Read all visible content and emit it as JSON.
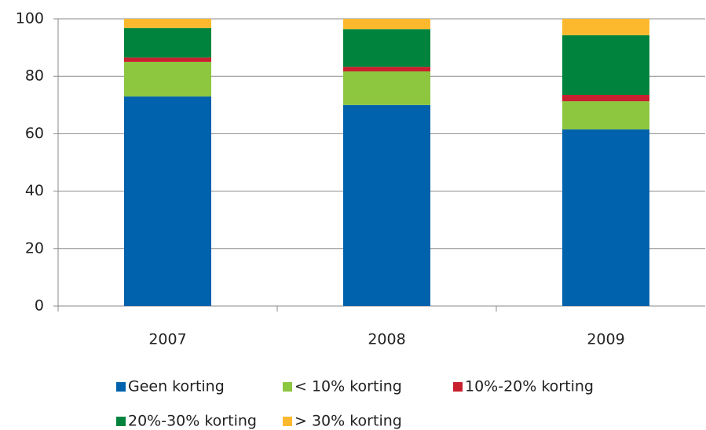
{
  "chart_data": {
    "type": "stacked-bar",
    "categories": [
      "2007",
      "2008",
      "2009"
    ],
    "series": [
      {
        "name": "Geen korting",
        "color": "#0062ac",
        "values": [
          73,
          70,
          61.5
        ]
      },
      {
        "name": "< 10% korting",
        "color": "#8dc63f",
        "values": [
          12,
          11.7,
          9.8
        ]
      },
      {
        "name": "10%-20% korting",
        "color": "#c8202f",
        "values": [
          1.5,
          1.6,
          2.2
        ]
      },
      {
        "name": "20%-30% korting",
        "color": "#00843d",
        "values": [
          10.3,
          13.1,
          20.8
        ]
      },
      {
        "name": "> 30% korting",
        "color": "#fdb92e",
        "values": [
          3.2,
          3.6,
          5.7
        ]
      }
    ],
    "ylim": [
      0,
      100
    ],
    "yticks": [
      0,
      20,
      40,
      60,
      80,
      100
    ],
    "grid": true
  }
}
